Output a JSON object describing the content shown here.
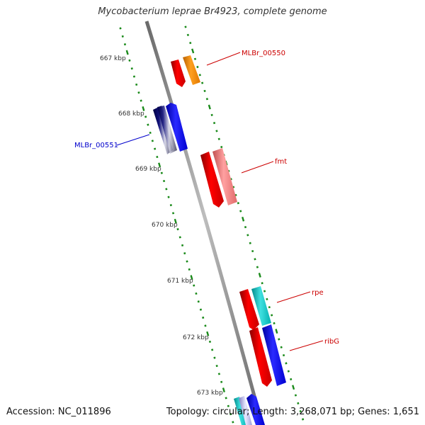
{
  "title": "Mycobacterium leprae Br4923, complete genome",
  "footer": {
    "accession": "Accession: NC_011896",
    "summary": "Topology: circular; Length: 3,268,071 bp; Genes: 1,651"
  },
  "colors": {
    "backbone": "#8a8a8a",
    "tick": "#1a8a1a",
    "forward_label": "#cc0000",
    "reverse_label": "#0000cc"
  },
  "ticks": [
    {
      "kb": 667,
      "label": "667 kbp"
    },
    {
      "kb": 668,
      "label": "668 kbp"
    },
    {
      "kb": 669,
      "label": "669 kbp"
    },
    {
      "kb": 670,
      "label": "670 kbp"
    },
    {
      "kb": 671,
      "label": "671 kbp"
    },
    {
      "kb": 672,
      "label": "672 kbp"
    },
    {
      "kb": 673,
      "label": "673 kbp"
    }
  ],
  "gene_labels": [
    {
      "name": "MLBr_00550",
      "color": "#cc0000"
    },
    {
      "name": "MLBr_00551",
      "color": "#0000cc"
    },
    {
      "name": "fmt",
      "color": "#cc0000"
    },
    {
      "name": "rpe",
      "color": "#cc0000"
    },
    {
      "name": "ribG",
      "color": "#cc0000"
    }
  ]
}
